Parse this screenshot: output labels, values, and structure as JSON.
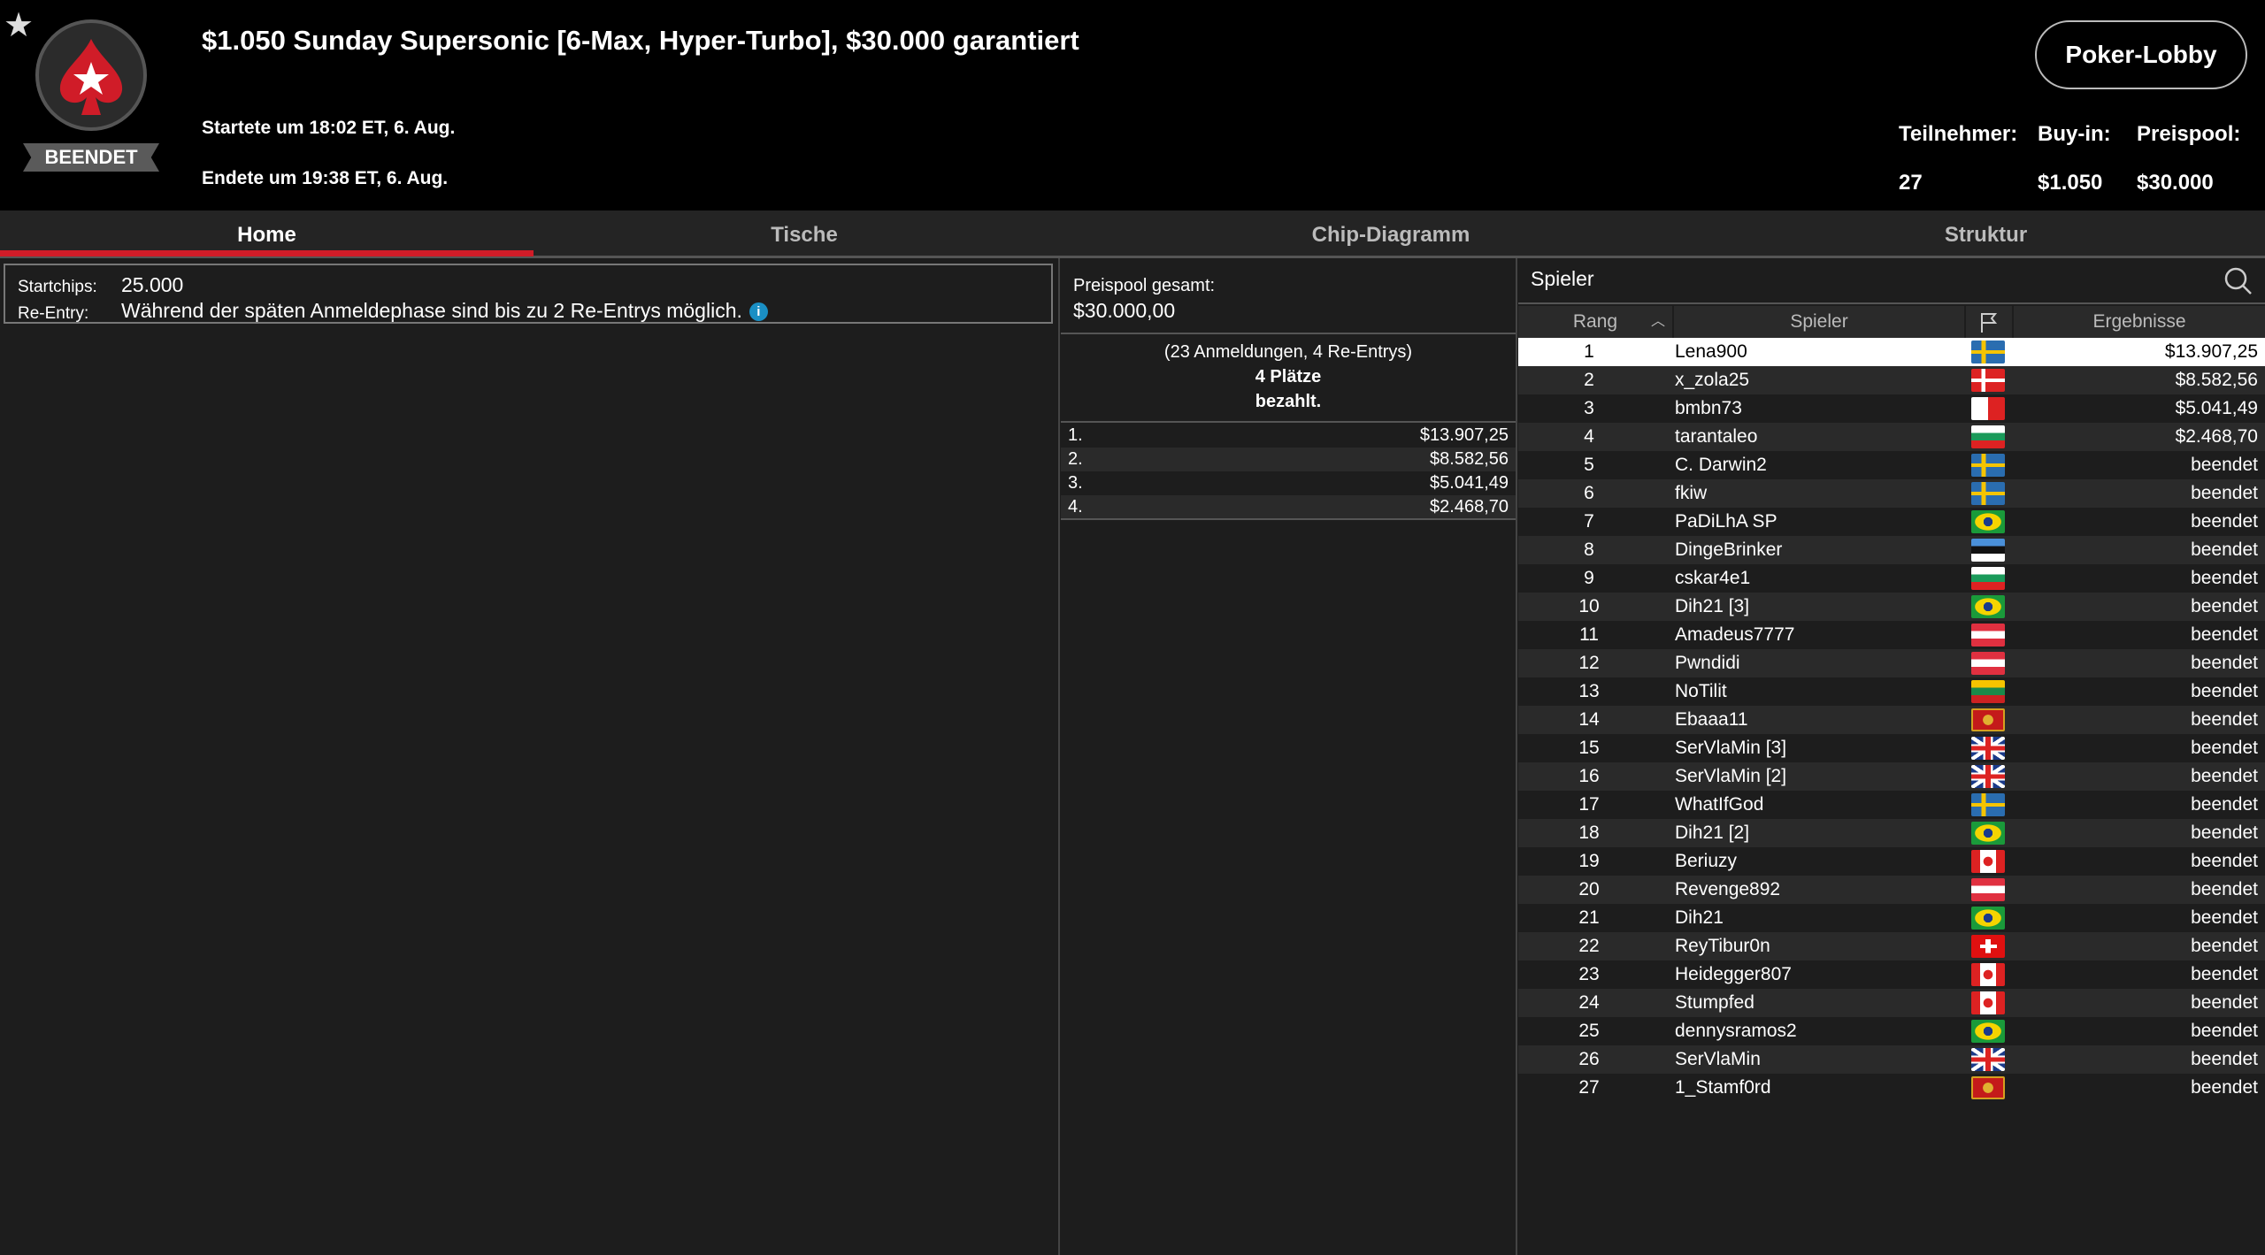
{
  "header": {
    "title": "$1.050 Sunday Supersonic [6-Max, Hyper-Turbo], $30.000 garantiert",
    "status": "BEENDET",
    "started": "Startete um 18:02 ET, 6. Aug.",
    "ended": "Endete um 19:38 ET, 6. Aug.",
    "lobby_button": "Poker-Lobby",
    "stats": {
      "participants_label": "Teilnehmer:",
      "participants": "27",
      "buyin_label": "Buy-in:",
      "buyin": "$1.050",
      "prizepool_label": "Preispool:",
      "prizepool": "$30.000"
    }
  },
  "tabs": [
    {
      "label": "Home",
      "active": true
    },
    {
      "label": "Tische"
    },
    {
      "label": "Chip-Diagramm"
    },
    {
      "label": "Struktur"
    }
  ],
  "home": {
    "startchips_label": "Startchips:",
    "startchips": "25.000",
    "reentry_label": "Re-Entry:",
    "reentry": "Während der späten Anmeldephase sind bis zu 2 Re-Entrys möglich."
  },
  "prizes": {
    "total_label": "Preispool gesamt:",
    "total": "$30.000,00",
    "entries": "(23 Anmeldungen, 4 Re-Entrys)",
    "paid_line1": "4 Plätze",
    "paid_line2": "bezahlt.",
    "places": [
      {
        "place": "1.",
        "amount": "$13.907,25"
      },
      {
        "place": "2.",
        "amount": "$8.582,56"
      },
      {
        "place": "3.",
        "amount": "$5.041,49"
      },
      {
        "place": "4.",
        "amount": "$2.468,70"
      }
    ]
  },
  "players": {
    "title": "Spieler",
    "columns": {
      "rank": "Rang",
      "player": "Spieler",
      "results": "Ergebnisse"
    },
    "rows": [
      {
        "rank": "1",
        "name": "Lena900",
        "flag": "se",
        "result": "$13.907,25",
        "selected": true
      },
      {
        "rank": "2",
        "name": "x_zola25",
        "flag": "dk",
        "result": "$8.582,56"
      },
      {
        "rank": "3",
        "name": "bmbn73",
        "flag": "mt",
        "result": "$5.041,49"
      },
      {
        "rank": "4",
        "name": "tarantaleo",
        "flag": "bg",
        "result": "$2.468,70"
      },
      {
        "rank": "5",
        "name": "C. Darwin2",
        "flag": "se",
        "result": "beendet"
      },
      {
        "rank": "6",
        "name": "fkiw",
        "flag": "se",
        "result": "beendet"
      },
      {
        "rank": "7",
        "name": "PaDiLhA SP",
        "flag": "br",
        "result": "beendet"
      },
      {
        "rank": "8",
        "name": "DingeBrinker",
        "flag": "ee",
        "result": "beendet"
      },
      {
        "rank": "9",
        "name": "cskar4e1",
        "flag": "bg",
        "result": "beendet"
      },
      {
        "rank": "10",
        "name": "Dih21 [3]",
        "flag": "br",
        "result": "beendet"
      },
      {
        "rank": "11",
        "name": "Amadeus7777",
        "flag": "at",
        "result": "beendet"
      },
      {
        "rank": "12",
        "name": "Pwndidi",
        "flag": "at",
        "result": "beendet"
      },
      {
        "rank": "13",
        "name": "NoTilit",
        "flag": "lt",
        "result": "beendet"
      },
      {
        "rank": "14",
        "name": "Ebaaa11",
        "flag": "me",
        "result": "beendet"
      },
      {
        "rank": "15",
        "name": "SerVlaMin [3]",
        "flag": "gb",
        "result": "beendet"
      },
      {
        "rank": "16",
        "name": "SerVlaMin [2]",
        "flag": "gb",
        "result": "beendet"
      },
      {
        "rank": "17",
        "name": "WhatIfGod",
        "flag": "se",
        "result": "beendet"
      },
      {
        "rank": "18",
        "name": "Dih21 [2]",
        "flag": "br",
        "result": "beendet"
      },
      {
        "rank": "19",
        "name": "Beriuzy",
        "flag": "ca",
        "result": "beendet"
      },
      {
        "rank": "20",
        "name": "Revenge892",
        "flag": "at",
        "result": "beendet"
      },
      {
        "rank": "21",
        "name": "Dih21",
        "flag": "br",
        "result": "beendet"
      },
      {
        "rank": "22",
        "name": "ReyTibur0n",
        "flag": "ch",
        "result": "beendet"
      },
      {
        "rank": "23",
        "name": "Heidegger807",
        "flag": "ca",
        "result": "beendet"
      },
      {
        "rank": "24",
        "name": "Stumpfed",
        "flag": "ca",
        "result": "beendet"
      },
      {
        "rank": "25",
        "name": "dennysramos2",
        "flag": "br",
        "result": "beendet"
      },
      {
        "rank": "26",
        "name": "SerVlaMin",
        "flag": "gb",
        "result": "beendet"
      },
      {
        "rank": "27",
        "name": "1_Stamf0rd",
        "flag": "me",
        "result": "beendet"
      }
    ]
  },
  "colors": {
    "accent": "#d01c28",
    "header_bg": "#000000",
    "panel_bg": "#1d1d1d",
    "info_icon": "#1a8fc4"
  }
}
